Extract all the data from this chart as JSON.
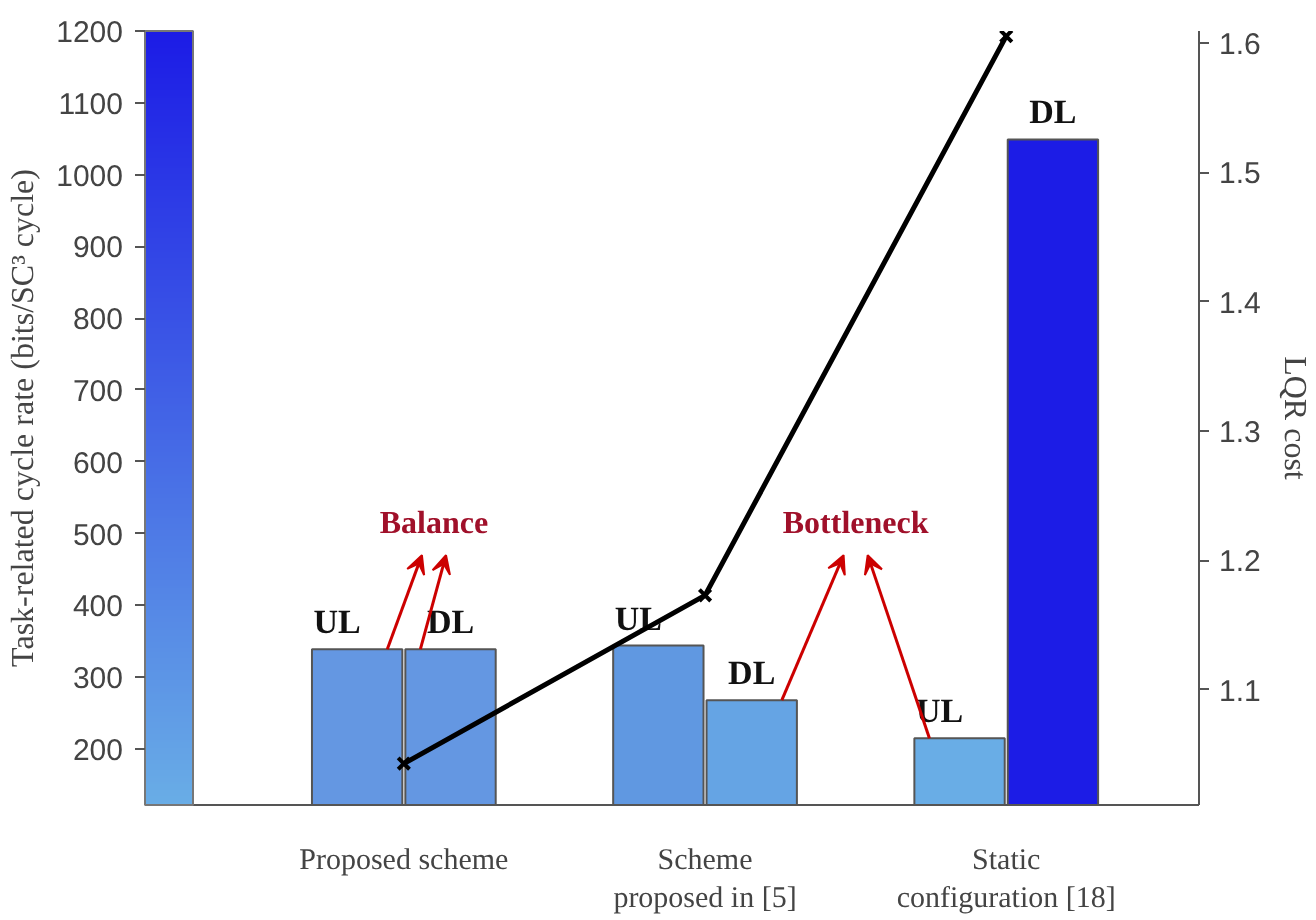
{
  "chart_data": {
    "type": "bar",
    "categories": [
      "Proposed scheme",
      "Scheme\nproposed in [5]",
      "Static\nconfiguration [18]"
    ],
    "ylabel": "Task-related cycle rate (bits/SC³ cycle)",
    "y2label": "LQR cost",
    "ylim": [
      122,
      1200
    ],
    "yticks": [
      200,
      300,
      400,
      500,
      600,
      700,
      800,
      900,
      1000,
      1100,
      1200
    ],
    "y2lim": [
      1.011,
      1.609
    ],
    "y2ticks": [
      1.1,
      1.2,
      1.3,
      1.4,
      1.5,
      1.6
    ],
    "series": [
      {
        "name": "UL",
        "values": [
          339,
          344,
          215
        ],
        "colors": [
          "#6497e2",
          "#6098e1",
          "#69ade6"
        ]
      },
      {
        "name": "DL",
        "values": [
          339,
          268,
          1049
        ],
        "colors": [
          "#6497e2",
          "#65a4e4",
          "#1c1ce6"
        ]
      },
      {
        "type": "line",
        "axis": "y2",
        "color": "#000000",
        "marker": "cross",
        "values": [
          1.043,
          1.173,
          1.605
        ]
      }
    ],
    "annotations": [
      "Balance",
      "Bottleneck"
    ],
    "grid": false
  }
}
